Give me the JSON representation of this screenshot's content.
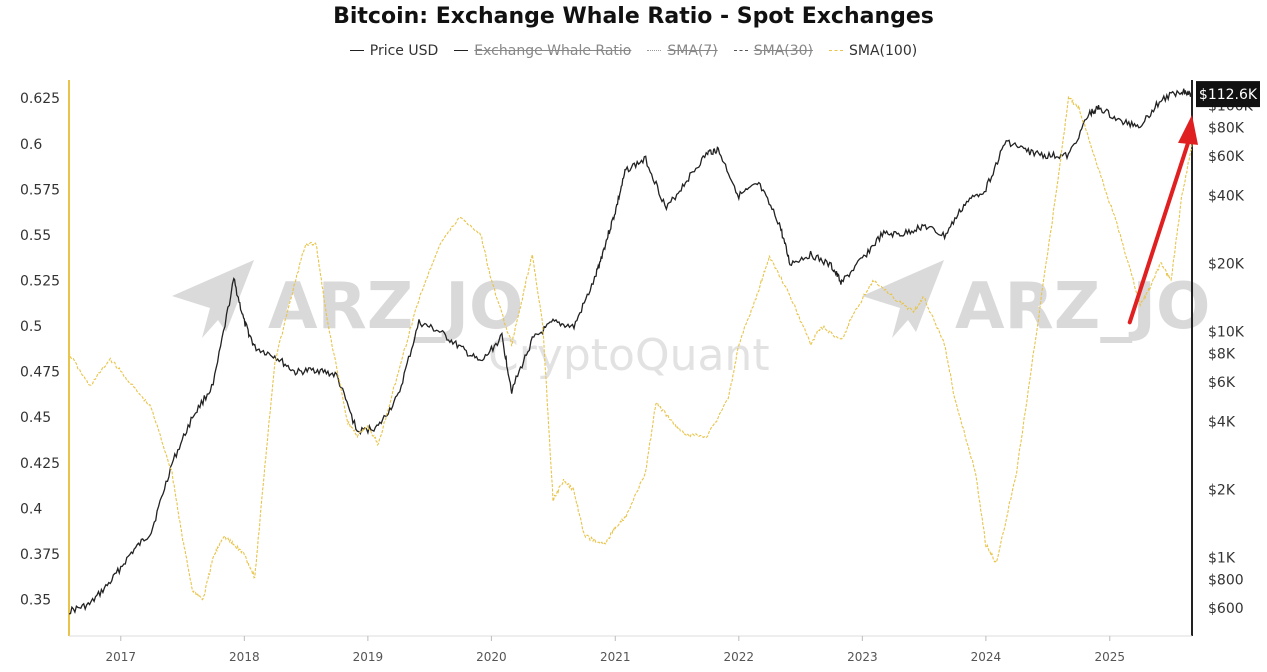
{
  "chart_data": {
    "type": "line",
    "title": "Bitcoin: Exchange Whale Ratio - Spot Exchanges",
    "legend": [
      {
        "name": "Price USD",
        "color": "#222222",
        "hidden": false,
        "style": "solid"
      },
      {
        "name": "Exchange Whale Ratio",
        "color": "#222222",
        "hidden": true,
        "style": "solid"
      },
      {
        "name": "SMA(7)",
        "color": "#999999",
        "hidden": true,
        "style": "dotted"
      },
      {
        "name": "SMA(30)",
        "color": "#555555",
        "hidden": true,
        "style": "dashed"
      },
      {
        "name": "SMA(100)",
        "color": "#e8c44a",
        "hidden": false,
        "style": "dashed"
      }
    ],
    "legend_position": "top-center",
    "x_ticks": [
      "2017",
      "2018",
      "2019",
      "2020",
      "2021",
      "2022",
      "2023",
      "2024",
      "2025"
    ],
    "x_range": [
      "2016-08",
      "2025-09"
    ],
    "left_axis": {
      "label": "",
      "ticks": [
        "0.625",
        "0.6",
        "0.575",
        "0.55",
        "0.525",
        "0.5",
        "0.475",
        "0.45",
        "0.425",
        "0.4",
        "0.375",
        "0.35"
      ],
      "range": [
        0.33,
        0.635
      ]
    },
    "right_axis": {
      "label": "",
      "scale": "log",
      "ticks": [
        "$100K",
        "$80K",
        "$60K",
        "$40K",
        "$20K",
        "$10K",
        "$8K",
        "$6K",
        "$4K",
        "$2K",
        "$1K",
        "$800",
        "$600"
      ],
      "range": [
        450,
        130000
      ]
    },
    "current_price_label": "$112.6K",
    "grid": false,
    "series": [
      {
        "name": "Price USD",
        "axis": "right",
        "color": "#222222",
        "x": [
          "2016-08",
          "2016-10",
          "2016-12",
          "2017-02",
          "2017-04",
          "2017-06",
          "2017-08",
          "2017-10",
          "2017-12",
          "2018-01",
          "2018-02",
          "2018-04",
          "2018-06",
          "2018-08",
          "2018-10",
          "2018-12",
          "2019-02",
          "2019-04",
          "2019-06",
          "2019-08",
          "2019-10",
          "2019-12",
          "2020-02",
          "2020-03",
          "2020-05",
          "2020-07",
          "2020-09",
          "2020-11",
          "2020-12",
          "2021-01",
          "2021-02",
          "2021-04",
          "2021-06",
          "2021-08",
          "2021-10",
          "2021-11",
          "2022-01",
          "2022-03",
          "2022-05",
          "2022-06",
          "2022-08",
          "2022-10",
          "2022-11",
          "2023-01",
          "2023-03",
          "2023-05",
          "2023-07",
          "2023-09",
          "2023-11",
          "2024-01",
          "2024-03",
          "2024-05",
          "2024-07",
          "2024-09",
          "2024-11",
          "2024-12",
          "2025-02",
          "2025-04",
          "2025-06",
          "2025-08",
          "2025-09"
        ],
        "y": [
          580,
          620,
          780,
          1050,
          1300,
          2600,
          4200,
          5800,
          17000,
          11000,
          8500,
          7800,
          6600,
          6800,
          6400,
          3600,
          3800,
          5200,
          11000,
          10000,
          8500,
          7300,
          9500,
          5500,
          9200,
          11000,
          10500,
          17000,
          24000,
          34000,
          52000,
          58000,
          35000,
          47000,
          62000,
          64000,
          40000,
          45000,
          30000,
          20000,
          22000,
          19500,
          16500,
          21000,
          27000,
          27000,
          29500,
          26500,
          37000,
          43000,
          70000,
          63000,
          60000,
          60000,
          92000,
          98000,
          85000,
          82000,
          106000,
          117000,
          112600
        ]
      },
      {
        "name": "SMA(100)",
        "axis": "left",
        "color": "#e8c44a",
        "x": [
          "2016-08",
          "2016-10",
          "2016-12",
          "2017-02",
          "2017-04",
          "2017-06",
          "2017-07",
          "2017-08",
          "2017-09",
          "2017-10",
          "2017-11",
          "2017-12",
          "2018-01",
          "2018-02",
          "2018-03",
          "2018-04",
          "2018-06",
          "2018-07",
          "2018-08",
          "2018-09",
          "2018-11",
          "2018-12",
          "2019-01",
          "2019-02",
          "2019-04",
          "2019-06",
          "2019-08",
          "2019-10",
          "2019-12",
          "2020-01",
          "2020-03",
          "2020-04",
          "2020-05",
          "2020-06",
          "2020-07",
          "2020-08",
          "2020-09",
          "2020-10",
          "2020-12",
          "2021-01",
          "2021-02",
          "2021-04",
          "2021-05",
          "2021-07",
          "2021-08",
          "2021-10",
          "2021-12",
          "2022-01",
          "2022-03",
          "2022-04",
          "2022-06",
          "2022-08",
          "2022-09",
          "2022-11",
          "2022-12",
          "2023-02",
          "2023-04",
          "2023-06",
          "2023-07",
          "2023-09",
          "2023-10",
          "2023-12",
          "2024-01",
          "2024-02",
          "2024-04",
          "2024-06",
          "2024-08",
          "2024-09",
          "2024-10",
          "2024-12",
          "2025-02",
          "2025-04",
          "2025-05",
          "2025-06",
          "2025-07",
          "2025-08",
          "2025-09"
        ],
        "y": [
          0.485,
          0.467,
          0.482,
          0.468,
          0.455,
          0.42,
          0.385,
          0.355,
          0.35,
          0.373,
          0.385,
          0.38,
          0.375,
          0.362,
          0.42,
          0.48,
          0.525,
          0.545,
          0.545,
          0.505,
          0.448,
          0.44,
          0.445,
          0.435,
          0.475,
          0.515,
          0.545,
          0.56,
          0.55,
          0.525,
          0.49,
          0.515,
          0.54,
          0.5,
          0.405,
          0.415,
          0.41,
          0.385,
          0.38,
          0.39,
          0.395,
          0.42,
          0.458,
          0.445,
          0.44,
          0.44,
          0.46,
          0.49,
          0.52,
          0.538,
          0.517,
          0.49,
          0.5,
          0.492,
          0.505,
          0.525,
          0.516,
          0.508,
          0.516,
          0.49,
          0.46,
          0.42,
          0.38,
          0.37,
          0.42,
          0.5,
          0.58,
          0.625,
          0.62,
          0.585,
          0.55,
          0.512,
          0.522,
          0.535,
          0.525,
          0.57,
          0.6
        ]
      }
    ]
  },
  "watermark": {
    "left_text": "ARZ_JO",
    "right_text": "ARZ_JO",
    "brand_text": "CryptoQuant"
  },
  "annotation": {
    "arrow_color": "#e02020",
    "from": {
      "date": "2025-03",
      "price": 11000
    },
    "to": {
      "date": "2025-09",
      "price": 84000
    }
  }
}
